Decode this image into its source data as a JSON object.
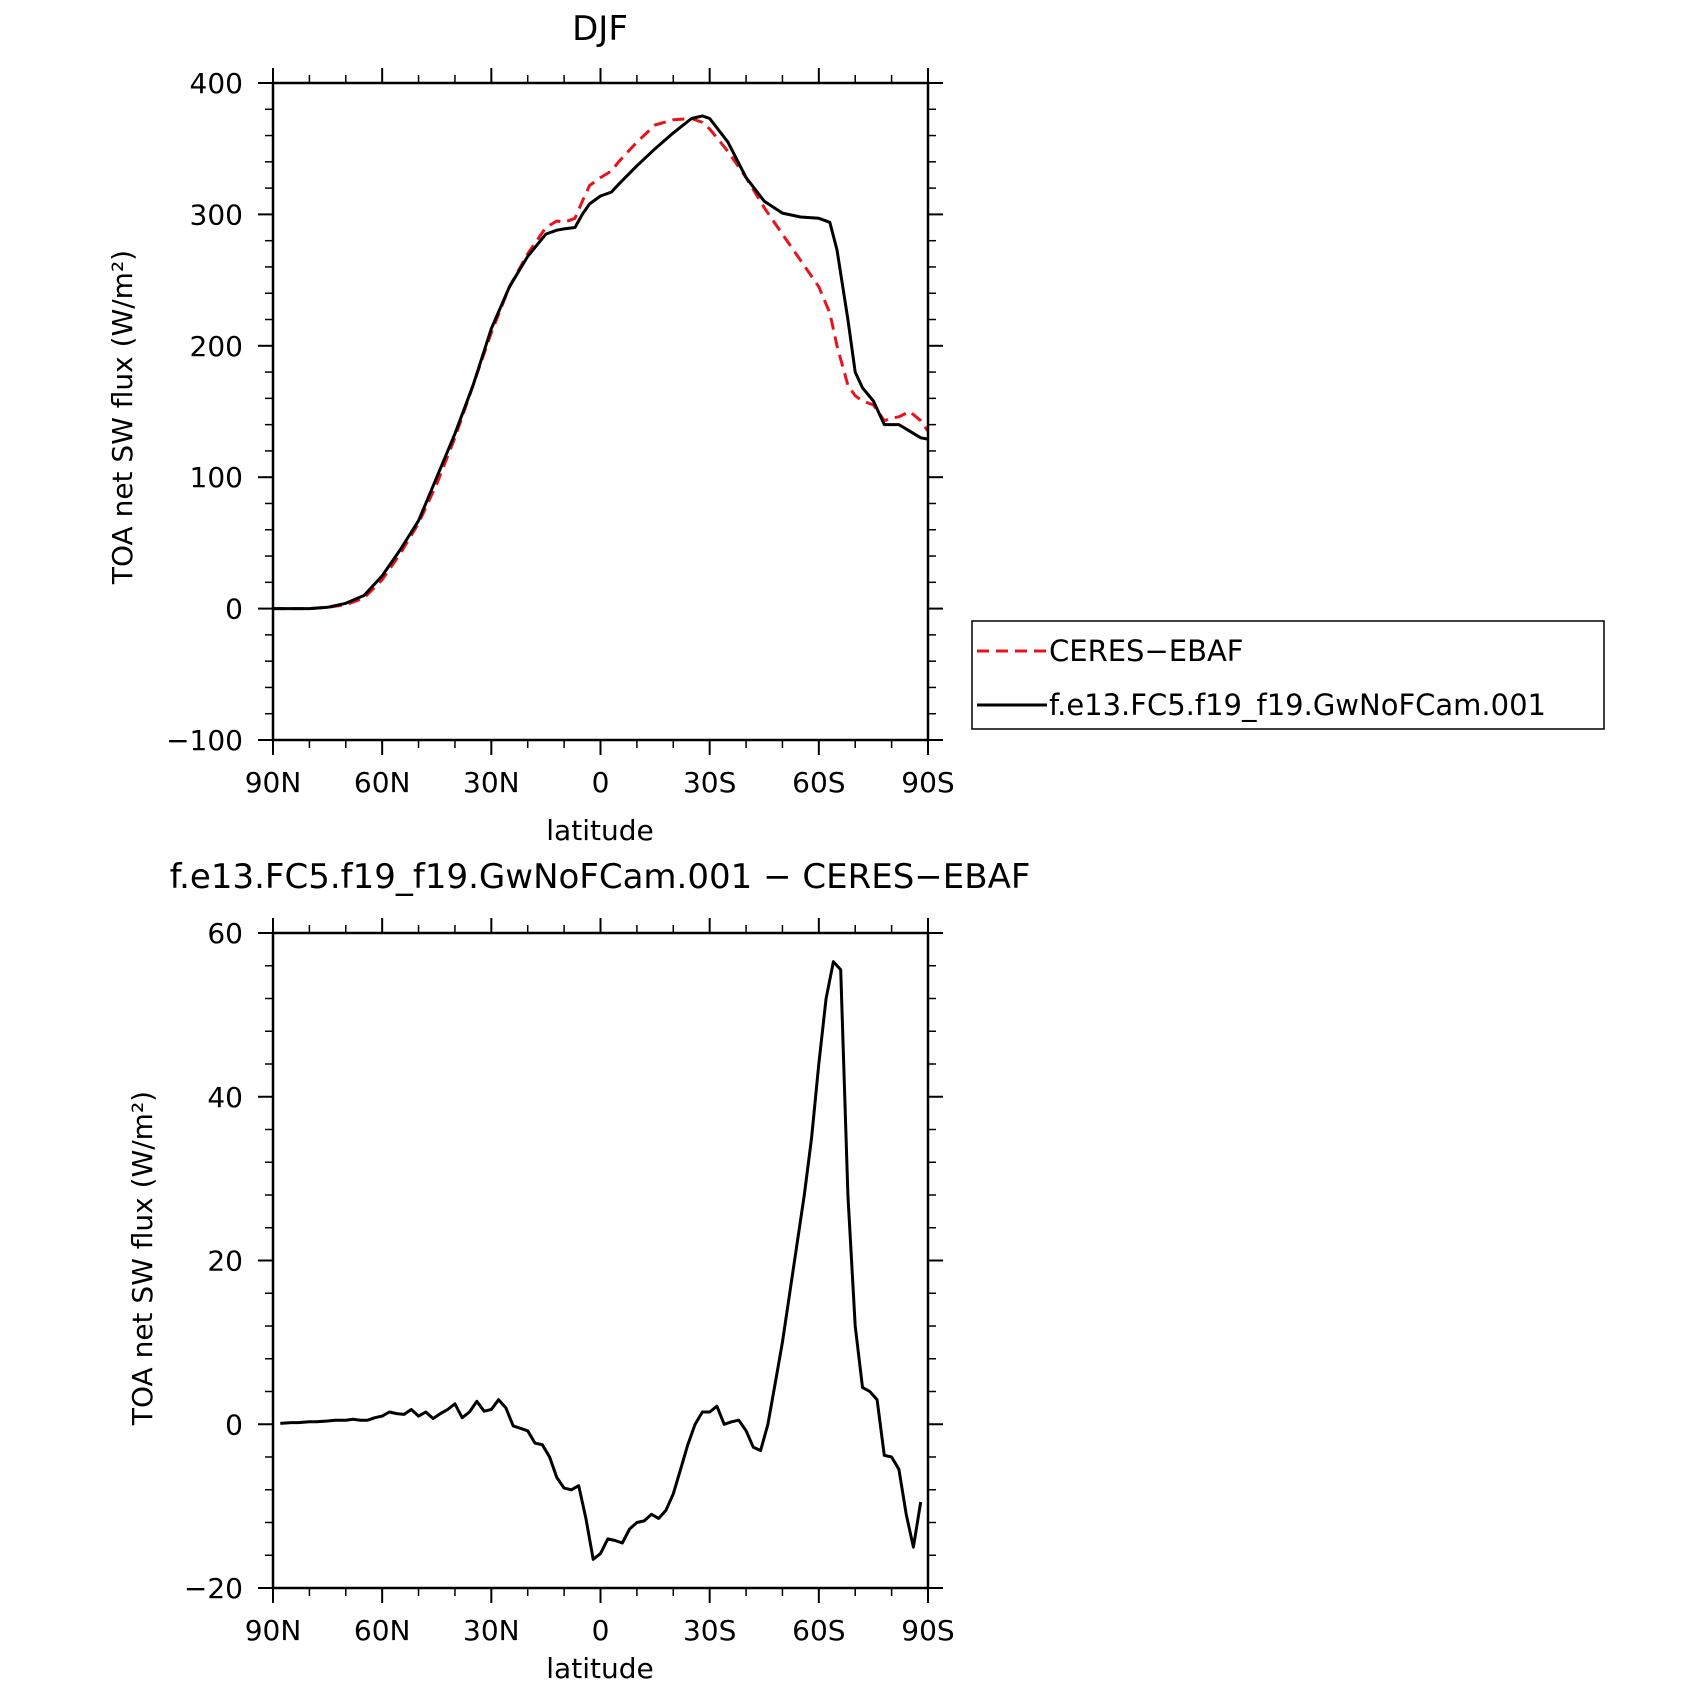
{
  "chart_data": [
    {
      "type": "line",
      "title": "DJF",
      "xlabel": "latitude",
      "ylabel": "TOA net SW flux (W/m²)",
      "xlim": [
        90,
        -90
      ],
      "ylim": [
        -100,
        400
      ],
      "x_ticks": [
        90,
        60,
        30,
        0,
        -30,
        -60,
        -90
      ],
      "x_tick_labels": [
        "90N",
        "60N",
        "30N",
        "0",
        "30S",
        "60S",
        "90S"
      ],
      "y_ticks": [
        -100,
        0,
        100,
        200,
        300,
        400
      ],
      "y_tick_labels": [
        "−100",
        "0",
        "100",
        "200",
        "300",
        "400"
      ],
      "grid": false,
      "legend_position": "right, outside plot",
      "series": [
        {
          "name": "CERES−EBAF",
          "color": "#e8141c",
          "dash": "dashed",
          "x": [
            90,
            85,
            80,
            75,
            70,
            65,
            60,
            55,
            50,
            45,
            40,
            35,
            30,
            25,
            20,
            15,
            12,
            10,
            7,
            5,
            3,
            0,
            -3,
            -5,
            -10,
            -15,
            -20,
            -25,
            -28,
            -30,
            -35,
            -40,
            -45,
            -50,
            -55,
            -60,
            -63,
            -65,
            -68,
            -70,
            -72,
            -75,
            -78,
            -80,
            -82,
            -85,
            -88,
            -90
          ],
          "y": [
            0,
            0,
            0,
            1,
            3,
            8,
            22,
            42,
            65,
            95,
            130,
            170,
            210,
            245,
            270,
            290,
            295,
            294,
            297,
            310,
            322,
            328,
            333,
            340,
            355,
            368,
            372,
            373,
            370,
            365,
            348,
            328,
            305,
            285,
            265,
            245,
            225,
            200,
            170,
            162,
            158,
            155,
            143,
            145,
            146,
            150,
            143,
            135
          ]
        },
        {
          "name": "f.e13.FC5.f19_f19.GwNoFCam.001",
          "color": "#000000",
          "dash": "solid",
          "x": [
            90,
            85,
            80,
            75,
            70,
            65,
            60,
            55,
            50,
            45,
            40,
            35,
            30,
            25,
            20,
            15,
            12,
            10,
            7,
            5,
            3,
            0,
            -3,
            -5,
            -10,
            -15,
            -20,
            -25,
            -28,
            -30,
            -35,
            -40,
            -45,
            -50,
            -55,
            -60,
            -63,
            -65,
            -68,
            -70,
            -72,
            -75,
            -78,
            -80,
            -82,
            -85,
            -88,
            -90
          ],
          "y": [
            0,
            0,
            0,
            1,
            4,
            10,
            25,
            45,
            67,
            100,
            133,
            170,
            213,
            245,
            268,
            285,
            288,
            289,
            290,
            300,
            308,
            314,
            317,
            323,
            337,
            350,
            362,
            373,
            375,
            373,
            355,
            328,
            310,
            301,
            298,
            297,
            294,
            273,
            220,
            180,
            168,
            158,
            140,
            140,
            140,
            135,
            130,
            129
          ]
        }
      ]
    },
    {
      "type": "line",
      "title": "f.e13.FC5.f19_f19.GwNoFCam.001 − CERES−EBAF",
      "xlabel": "latitude",
      "ylabel": "TOA net SW flux (W/m²)",
      "xlim": [
        90,
        -90
      ],
      "ylim": [
        -20,
        60
      ],
      "x_ticks": [
        90,
        60,
        30,
        0,
        -30,
        -60,
        -90
      ],
      "x_tick_labels": [
        "90N",
        "60N",
        "30N",
        "0",
        "30S",
        "60S",
        "90S"
      ],
      "y_ticks": [
        -20,
        0,
        20,
        40,
        60
      ],
      "y_tick_labels": [
        "−20",
        "0",
        "20",
        "40",
        "60"
      ],
      "grid": false,
      "series": [
        {
          "color": "#000000",
          "dash": "solid",
          "x": [
            88,
            85,
            83,
            80,
            78,
            75,
            73,
            70,
            68,
            66,
            64,
            62,
            60,
            58,
            56,
            54,
            52,
            50,
            48,
            46,
            44,
            42,
            40,
            38,
            36,
            34,
            32,
            30,
            28,
            26,
            24,
            22,
            20,
            18,
            16,
            14,
            12,
            10,
            8,
            6,
            4,
            2,
            0,
            -2,
            -4,
            -6,
            -8,
            -10,
            -12,
            -14,
            -16,
            -18,
            -20,
            -22,
            -24,
            -26,
            -28,
            -30,
            -32,
            -34,
            -36,
            -38,
            -40,
            -42,
            -44,
            -46,
            -48,
            -50,
            -52,
            -54,
            -56,
            -58,
            -60,
            -62,
            -64,
            -66,
            -68,
            -70,
            -72,
            -74,
            -76,
            -78,
            -80,
            -82,
            -84,
            -86,
            -88
          ],
          "y": [
            0.1,
            0.2,
            0.2,
            0.3,
            0.3,
            0.4,
            0.5,
            0.5,
            0.6,
            0.5,
            0.5,
            0.8,
            1.0,
            1.5,
            1.3,
            1.2,
            1.8,
            1.0,
            1.5,
            0.7,
            1.3,
            1.8,
            2.5,
            0.8,
            1.5,
            2.8,
            1.6,
            1.8,
            3.0,
            2.0,
            -0.2,
            -0.5,
            -0.8,
            -2.3,
            -2.5,
            -4.0,
            -6.5,
            -7.8,
            -8.0,
            -7.5,
            -11.5,
            -16.5,
            -15.8,
            -14.0,
            -14.2,
            -14.5,
            -12.8,
            -12.0,
            -11.8,
            -11.0,
            -11.5,
            -10.5,
            -8.5,
            -5.5,
            -2.5,
            0.0,
            1.5,
            1.5,
            2.2,
            0.0,
            0.3,
            0.5,
            -0.8,
            -2.8,
            -3.2,
            0.0,
            5.0,
            10.0,
            16.0,
            22.0,
            28.0,
            35.0,
            44.0,
            52.0,
            56.5,
            55.5,
            28.0,
            12.0,
            4.5,
            4.0,
            3.0,
            -3.8,
            -4.0,
            -5.5,
            -11.0,
            -15.0,
            -9.5
          ]
        }
      ]
    }
  ]
}
